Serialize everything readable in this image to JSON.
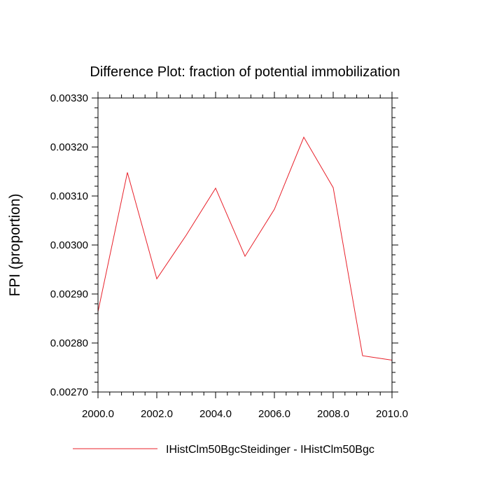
{
  "chart_data": {
    "type": "line",
    "title": "Difference Plot: fraction of potential immobilization",
    "xlabel": "",
    "ylabel": "FPI  (proportion)",
    "xlim": [
      2000,
      2010
    ],
    "ylim": [
      0.0027,
      0.0033
    ],
    "x_ticks": [
      2000,
      2002,
      2004,
      2006,
      2008,
      2010
    ],
    "x_tick_labels": [
      "2000.0",
      "2002.0",
      "2004.0",
      "2006.0",
      "2008.0",
      "2010.0"
    ],
    "y_ticks": [
      0.0027,
      0.0028,
      0.0029,
      0.003,
      0.0031,
      0.0032,
      0.0033
    ],
    "y_tick_labels": [
      "0.00270",
      "0.00280",
      "0.00290",
      "0.00300",
      "0.00310",
      "0.00320",
      "0.00330"
    ],
    "grid": false,
    "legend_position": "bottom",
    "series": [
      {
        "name": "IHistClm50BgcSteidinger - IHistClm50Bgc",
        "color": "#e8202a",
        "x": [
          2000,
          2001,
          2002,
          2003,
          2004,
          2005,
          2006,
          2007,
          2008,
          2009,
          2010
        ],
        "y": [
          0.002864,
          0.003148,
          0.002931,
          0.00302,
          0.003116,
          0.002977,
          0.003073,
          0.00322,
          0.003117,
          0.002774,
          0.002765
        ]
      }
    ]
  }
}
